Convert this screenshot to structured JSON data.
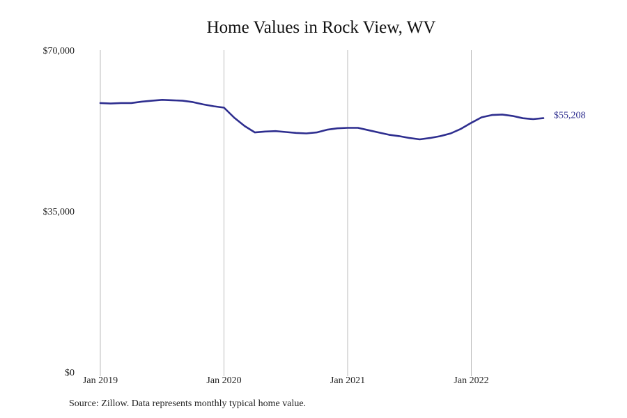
{
  "title": "Home Values in Rock View, WV",
  "source_note": "Source: Zillow. Data represents monthly typical home value.",
  "colors": {
    "line": "#2e2e8f",
    "gridline": "#bbbbbb",
    "text": "#222222"
  },
  "chart_data": {
    "type": "line",
    "title": "Home Values in Rock View, WV",
    "xlabel": "",
    "ylabel": "",
    "x_tick_labels": [
      "Jan 2019",
      "Jan 2020",
      "Jan 2021",
      "Jan 2022"
    ],
    "y_tick_labels": [
      "$0",
      "$35,000",
      "$70,000"
    ],
    "y_ticks": [
      0,
      35000,
      70000
    ],
    "ylim": [
      0,
      70000
    ],
    "grid": "vertical",
    "end_label": "$55,208",
    "series": [
      {
        "x": [
          "2019-01",
          "2019-02",
          "2019-03",
          "2019-04",
          "2019-05",
          "2019-06",
          "2019-07",
          "2019-08",
          "2019-09",
          "2019-10",
          "2019-11",
          "2019-12",
          "2020-01",
          "2020-02",
          "2020-03",
          "2020-04",
          "2020-05",
          "2020-06",
          "2020-07",
          "2020-08",
          "2020-09",
          "2020-10",
          "2020-11",
          "2020-12",
          "2021-01",
          "2021-02",
          "2021-03",
          "2021-04",
          "2021-05",
          "2021-06",
          "2021-07",
          "2021-08",
          "2021-09",
          "2021-10",
          "2021-11",
          "2021-12",
          "2022-01",
          "2022-02",
          "2022-03",
          "2022-04",
          "2022-05",
          "2022-06",
          "2022-07",
          "2022-08"
        ],
        "values": [
          58500,
          58400,
          58500,
          58500,
          58800,
          59000,
          59200,
          59100,
          59000,
          58700,
          58200,
          57800,
          57500,
          55300,
          53500,
          52100,
          52300,
          52400,
          52200,
          52000,
          51900,
          52100,
          52700,
          53000,
          53100,
          53100,
          52600,
          52100,
          51600,
          51300,
          50900,
          50600,
          50900,
          51300,
          51900,
          52900,
          54200,
          55400,
          55900,
          56000,
          55700,
          55200,
          55000,
          55208
        ]
      }
    ]
  }
}
